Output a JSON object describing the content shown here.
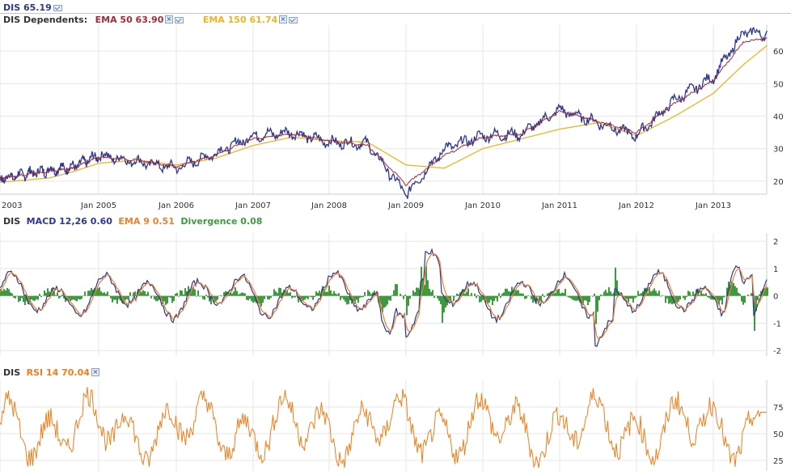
{
  "header": {
    "symbol_price": "DIS 65.19",
    "dependents_label": "DIS Dependents:",
    "ema50_label": "EMA 50 63.90",
    "ema150_label": "EMA 150 61.74"
  },
  "macd_header": {
    "symbol": "DIS",
    "macd_label": "MACD 12,26 0.60",
    "ema_label": "EMA 9 0.51",
    "divergence_label": "Divergence 0.08"
  },
  "rsi_header": {
    "symbol": "DIS",
    "rsi_label": "RSI 14 70.04"
  },
  "colors": {
    "price": "#2b3990",
    "ema50": "#a8283c",
    "ema150": "#f0b323",
    "macd": "#2b3990",
    "signal": "#f07f2b",
    "divergence": "#3e9a3e",
    "rsi": "#f07f1b",
    "grid": "#e6e6e6"
  },
  "chart_data": [
    {
      "type": "line",
      "panel": "price",
      "x_ticks": [
        "2003",
        "Jan 2005",
        "Jan 2006",
        "Jan 2007",
        "Jan 2008",
        "Jan 2009",
        "Jan 2010",
        "Jan 2011",
        "Jan 2012",
        "Jan 2013"
      ],
      "y_ticks": [
        "20",
        "30",
        "40",
        "50",
        "60"
      ],
      "ylim": [
        16,
        68
      ],
      "x": [
        2003.5,
        2004.0,
        2004.5,
        2005.0,
        2005.5,
        2006.0,
        2006.5,
        2007.0,
        2007.5,
        2008.0,
        2008.5,
        2009.0,
        2009.5,
        2010.0,
        2010.5,
        2011.0,
        2011.5,
        2012.0,
        2012.5,
        2013.0,
        2013.4,
        2013.7
      ],
      "series": [
        {
          "name": "DIS",
          "values": [
            19.5,
            23.5,
            24.5,
            28,
            26,
            24,
            28.5,
            34,
            35,
            32,
            31.5,
            16,
            30,
            34,
            34.5,
            42,
            38,
            34,
            45,
            52,
            66,
            65.19
          ]
        },
        {
          "name": "EMA 50",
          "values": [
            20,
            23,
            24,
            27.5,
            26.5,
            24.5,
            28,
            33,
            34.5,
            32.5,
            31,
            19,
            28,
            33.5,
            34.5,
            41.5,
            38.5,
            35,
            44,
            51,
            63,
            63.9
          ]
        },
        {
          "name": "EMA 150",
          "values": [
            19,
            21,
            23,
            25.5,
            26.5,
            25,
            27,
            31,
            33.5,
            32.5,
            32,
            25,
            24,
            30,
            33,
            36,
            38,
            34,
            40,
            47,
            56,
            61.74
          ]
        }
      ]
    },
    {
      "type": "line",
      "panel": "macd",
      "y_ticks": [
        "2",
        "1",
        "0",
        "-1",
        "-2"
      ],
      "ylim": [
        -2.2,
        2.3
      ],
      "series": [
        {
          "name": "MACD 12,26",
          "final": 0.6
        },
        {
          "name": "EMA 9",
          "final": 0.51
        },
        {
          "name": "Divergence",
          "final": 0.08
        }
      ]
    },
    {
      "type": "line",
      "panel": "rsi",
      "y_ticks": [
        "75",
        "50",
        "25"
      ],
      "ylim": [
        15,
        100
      ],
      "series": [
        {
          "name": "RSI 14",
          "final": 70.04
        }
      ]
    }
  ]
}
